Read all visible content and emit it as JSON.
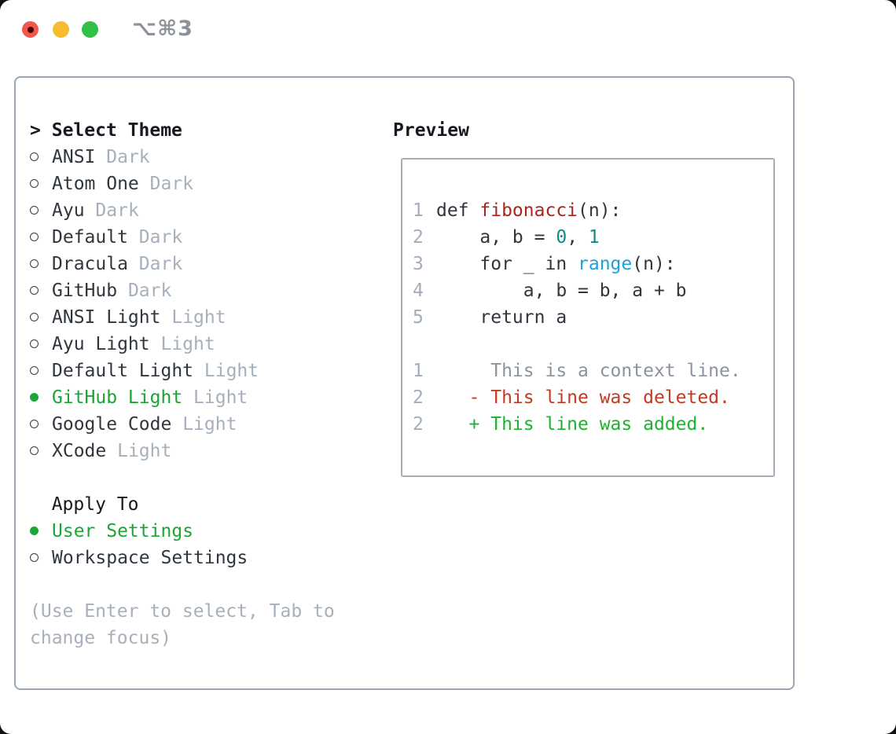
{
  "titlebar": {
    "shortcut": "⌥⌘3"
  },
  "theme_picker": {
    "cursor": ">",
    "title": "Select Theme",
    "items": [
      {
        "name": "ANSI",
        "tag": "Dark",
        "selected": false
      },
      {
        "name": "Atom One",
        "tag": "Dark",
        "selected": false
      },
      {
        "name": "Ayu",
        "tag": "Dark",
        "selected": false
      },
      {
        "name": "Default",
        "tag": "Dark",
        "selected": false
      },
      {
        "name": "Dracula",
        "tag": "Dark",
        "selected": false
      },
      {
        "name": "GitHub",
        "tag": "Dark",
        "selected": false
      },
      {
        "name": "ANSI Light",
        "tag": "Light",
        "selected": false
      },
      {
        "name": "Ayu Light",
        "tag": "Light",
        "selected": false
      },
      {
        "name": "Default Light",
        "tag": "Light",
        "selected": false
      },
      {
        "name": "GitHub Light",
        "tag": "Light",
        "selected": true
      },
      {
        "name": "Google Code",
        "tag": "Light",
        "selected": false
      },
      {
        "name": "XCode",
        "tag": "Light",
        "selected": false
      }
    ]
  },
  "apply_to": {
    "title": "Apply To",
    "items": [
      {
        "label": "User Settings",
        "selected": true
      },
      {
        "label": "Workspace Settings",
        "selected": false
      }
    ]
  },
  "hint": {
    "line1": "(Use Enter to select, Tab to",
    "line2": "change focus)"
  },
  "preview": {
    "title": "Preview",
    "lines": [
      {
        "n": "1",
        "segs": [
          {
            "t": "def ",
            "c": "p"
          },
          {
            "t": "fibonacci",
            "c": "fn"
          },
          {
            "t": "(n):",
            "c": "p"
          }
        ]
      },
      {
        "n": "2",
        "segs": [
          {
            "t": "    a, b = ",
            "c": "p"
          },
          {
            "t": "0",
            "c": "num"
          },
          {
            "t": ", ",
            "c": "p"
          },
          {
            "t": "1",
            "c": "num"
          }
        ]
      },
      {
        "n": "3",
        "segs": [
          {
            "t": "    for _ in ",
            "c": "p"
          },
          {
            "t": "range",
            "c": "bi"
          },
          {
            "t": "(n):",
            "c": "p"
          }
        ]
      },
      {
        "n": "4",
        "segs": [
          {
            "t": "        a, b = b, a + b",
            "c": "p"
          }
        ]
      },
      {
        "n": "5",
        "segs": [
          {
            "t": "    return a",
            "c": "p"
          }
        ]
      },
      {
        "n": "",
        "segs": []
      },
      {
        "n": "1",
        "segs": [
          {
            "t": "     This is a context line.",
            "c": "ctx"
          }
        ]
      },
      {
        "n": "2",
        "segs": [
          {
            "t": "   - This line was deleted.",
            "c": "del"
          }
        ]
      },
      {
        "n": "2",
        "segs": [
          {
            "t": "   + This line was added.",
            "c": "add"
          }
        ]
      }
    ]
  },
  "colors": {
    "selection_green": "#1aa534",
    "added_green": "#1db32d",
    "deleted_red": "#c43a20",
    "function_red": "#a8261b",
    "number_teal": "#0e8a8a",
    "builtin_blue": "#1da1d8",
    "muted_tag_gray": "#a6b0bc",
    "context_gray": "#8b939c",
    "panel_border": "#9aa7b3",
    "traffic_red": "#f3564e",
    "traffic_yellow": "#f7bb31",
    "traffic_green": "#32c146"
  }
}
